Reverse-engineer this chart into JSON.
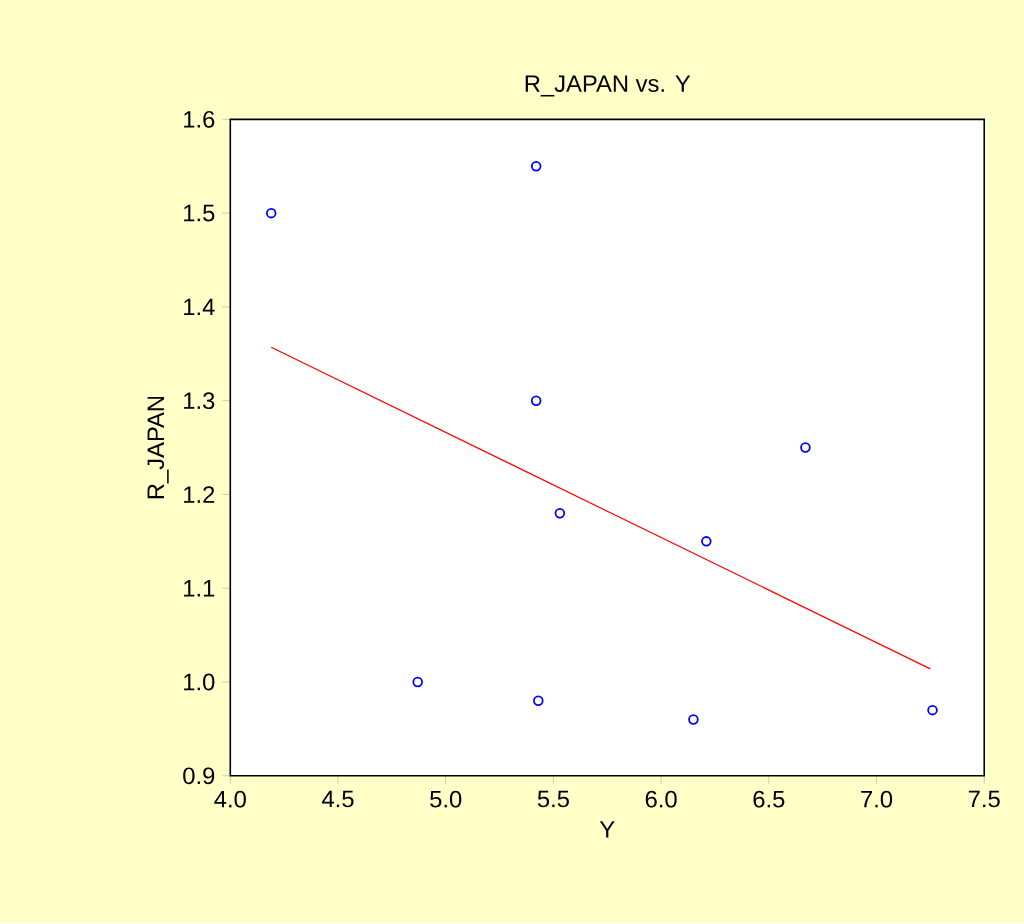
{
  "chart_data": {
    "type": "scatter",
    "title": "R_JAPAN vs. Y",
    "xlabel": "Y",
    "ylabel": "R_JAPAN",
    "xlim": [
      4.0,
      7.5
    ],
    "ylim": [
      0.9,
      1.6
    ],
    "xticks": [
      {
        "value": 4.0,
        "label": "4.0"
      },
      {
        "value": 4.5,
        "label": "4.5"
      },
      {
        "value": 5.0,
        "label": "5.0"
      },
      {
        "value": 5.5,
        "label": "5.5"
      },
      {
        "value": 6.0,
        "label": "6.0"
      },
      {
        "value": 6.5,
        "label": "6.5"
      },
      {
        "value": 7.0,
        "label": "7.0"
      },
      {
        "value": 7.5,
        "label": "7.5"
      }
    ],
    "yticks": [
      {
        "value": 0.9,
        "label": "0.9"
      },
      {
        "value": 1.0,
        "label": "1.0"
      },
      {
        "value": 1.1,
        "label": "1.1"
      },
      {
        "value": 1.2,
        "label": "1.2"
      },
      {
        "value": 1.3,
        "label": "1.3"
      },
      {
        "value": 1.4,
        "label": "1.4"
      },
      {
        "value": 1.5,
        "label": "1.5"
      },
      {
        "value": 1.6,
        "label": "1.6"
      }
    ],
    "series": [
      {
        "color": "#0000ff",
        "marker": "circle",
        "x": [
          4.19,
          5.42,
          5.42,
          6.67,
          5.53,
          6.21,
          4.87,
          5.43,
          6.15,
          7.26
        ],
        "values": [
          1.5,
          1.55,
          1.3,
          1.25,
          1.18,
          1.15,
          1.0,
          0.98,
          0.96,
          0.97
        ]
      },
      {
        "type": "line",
        "color": "#ff0000",
        "line_style": "solid",
        "x": [
          4.19,
          7.25
        ],
        "values": [
          1.357,
          1.014
        ]
      }
    ]
  }
}
